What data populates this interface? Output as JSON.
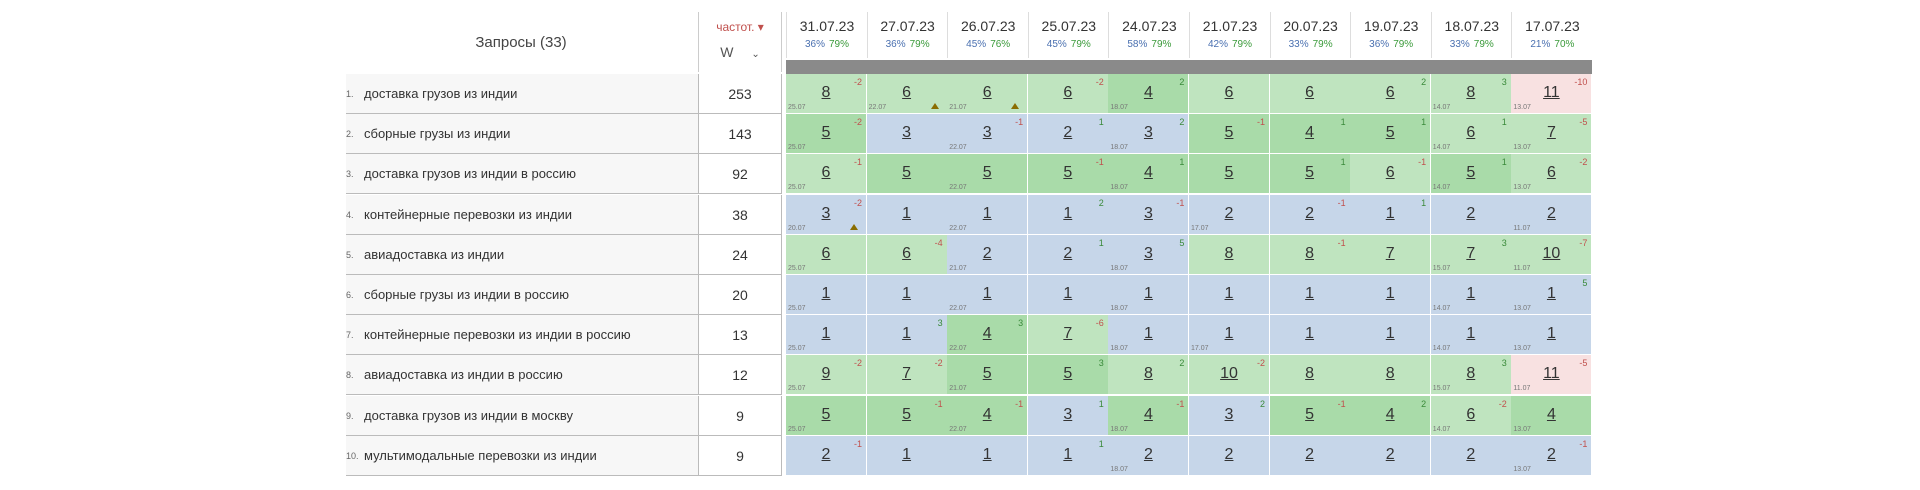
{
  "header": {
    "queries_title": "Запросы (33)",
    "freq_title": "частот. ▾",
    "freq_select": "W",
    "dates": [
      {
        "date": "31.07.23",
        "pct_a": "36%",
        "pct_b": "79%"
      },
      {
        "date": "27.07.23",
        "pct_a": "36%",
        "pct_b": "79%"
      },
      {
        "date": "26.07.23",
        "pct_a": "45%",
        "pct_b": "76%"
      },
      {
        "date": "25.07.23",
        "pct_a": "45%",
        "pct_b": "79%"
      },
      {
        "date": "24.07.23",
        "pct_a": "58%",
        "pct_b": "79%"
      },
      {
        "date": "21.07.23",
        "pct_a": "42%",
        "pct_b": "79%"
      },
      {
        "date": "20.07.23",
        "pct_a": "33%",
        "pct_b": "79%"
      },
      {
        "date": "19.07.23",
        "pct_a": "36%",
        "pct_b": "79%"
      },
      {
        "date": "18.07.23",
        "pct_a": "33%",
        "pct_b": "79%"
      },
      {
        "date": "17.07.23",
        "pct_a": "21%",
        "pct_b": "70%"
      }
    ]
  },
  "rows": [
    {
      "idx": "1.",
      "query": "доставка грузов из индии",
      "freq": "253",
      "cells": [
        {
          "pos": "8",
          "delta": "-2",
          "date": "25.07",
          "c": "g"
        },
        {
          "pos": "6",
          "delta": "",
          "date": "22.07",
          "c": "g",
          "tri": true
        },
        {
          "pos": "6",
          "delta": "",
          "date": "21.07",
          "c": "g",
          "tri": true
        },
        {
          "pos": "6",
          "delta": "-2",
          "date": "",
          "c": "g"
        },
        {
          "pos": "4",
          "delta": "2",
          "date": "18.07",
          "c": "dg"
        },
        {
          "pos": "6",
          "delta": "",
          "date": "",
          "c": "g"
        },
        {
          "pos": "6",
          "delta": "",
          "date": "",
          "c": "g"
        },
        {
          "pos": "6",
          "delta": "2",
          "date": "",
          "c": "g"
        },
        {
          "pos": "8",
          "delta": "3",
          "date": "14.07",
          "c": "g"
        },
        {
          "pos": "11",
          "delta": "-10",
          "date": "13.07",
          "c": "r"
        }
      ]
    },
    {
      "idx": "2.",
      "query": "сборные грузы из индии",
      "freq": "143",
      "cells": [
        {
          "pos": "5",
          "delta": "-2",
          "date": "25.07",
          "c": "dg"
        },
        {
          "pos": "3",
          "delta": "",
          "date": "",
          "c": "b"
        },
        {
          "pos": "3",
          "delta": "-1",
          "date": "22.07",
          "c": "b"
        },
        {
          "pos": "2",
          "delta": "1",
          "date": "",
          "c": "b"
        },
        {
          "pos": "3",
          "delta": "2",
          "date": "18.07",
          "c": "b"
        },
        {
          "pos": "5",
          "delta": "-1",
          "date": "",
          "c": "dg"
        },
        {
          "pos": "4",
          "delta": "1",
          "date": "",
          "c": "dg"
        },
        {
          "pos": "5",
          "delta": "1",
          "date": "",
          "c": "dg"
        },
        {
          "pos": "6",
          "delta": "1",
          "date": "14.07",
          "c": "g"
        },
        {
          "pos": "7",
          "delta": "-5",
          "date": "13.07",
          "c": "g"
        }
      ]
    },
    {
      "idx": "3.",
      "query": "доставка грузов из индии в россию",
      "freq": "92",
      "cells": [
        {
          "pos": "6",
          "delta": "-1",
          "date": "25.07",
          "c": "g"
        },
        {
          "pos": "5",
          "delta": "",
          "date": "",
          "c": "dg"
        },
        {
          "pos": "5",
          "delta": "",
          "date": "22.07",
          "c": "dg"
        },
        {
          "pos": "5",
          "delta": "-1",
          "date": "",
          "c": "dg"
        },
        {
          "pos": "4",
          "delta": "1",
          "date": "18.07",
          "c": "dg"
        },
        {
          "pos": "5",
          "delta": "",
          "date": "",
          "c": "dg"
        },
        {
          "pos": "5",
          "delta": "1",
          "date": "",
          "c": "dg"
        },
        {
          "pos": "6",
          "delta": "-1",
          "date": "",
          "c": "g"
        },
        {
          "pos": "5",
          "delta": "1",
          "date": "14.07",
          "c": "dg"
        },
        {
          "pos": "6",
          "delta": "-2",
          "date": "13.07",
          "c": "g"
        }
      ]
    },
    {
      "idx": "4.",
      "query": "контейнерные перевозки из индии",
      "freq": "38",
      "cells": [
        {
          "pos": "3",
          "delta": "-2",
          "date": "20.07",
          "c": "b",
          "tri": true
        },
        {
          "pos": "1",
          "delta": "",
          "date": "",
          "c": "b"
        },
        {
          "pos": "1",
          "delta": "",
          "date": "22.07",
          "c": "b"
        },
        {
          "pos": "1",
          "delta": "2",
          "date": "",
          "c": "b"
        },
        {
          "pos": "3",
          "delta": "-1",
          "date": "",
          "c": "b"
        },
        {
          "pos": "2",
          "delta": "",
          "date": "17.07",
          "c": "b"
        },
        {
          "pos": "2",
          "delta": "-1",
          "date": "",
          "c": "b"
        },
        {
          "pos": "1",
          "delta": "1",
          "date": "",
          "c": "b"
        },
        {
          "pos": "2",
          "delta": "",
          "date": "",
          "c": "b"
        },
        {
          "pos": "2",
          "delta": "",
          "date": "11.07",
          "c": "b"
        }
      ]
    },
    {
      "idx": "5.",
      "query": "авиадоставка из индии",
      "freq": "24",
      "cells": [
        {
          "pos": "6",
          "delta": "",
          "date": "25.07",
          "c": "g"
        },
        {
          "pos": "6",
          "delta": "-4",
          "date": "",
          "c": "g"
        },
        {
          "pos": "2",
          "delta": "",
          "date": "21.07",
          "c": "b"
        },
        {
          "pos": "2",
          "delta": "1",
          "date": "",
          "c": "b"
        },
        {
          "pos": "3",
          "delta": "5",
          "date": "18.07",
          "c": "b"
        },
        {
          "pos": "8",
          "delta": "",
          "date": "",
          "c": "g"
        },
        {
          "pos": "8",
          "delta": "-1",
          "date": "",
          "c": "g"
        },
        {
          "pos": "7",
          "delta": "",
          "date": "",
          "c": "g"
        },
        {
          "pos": "7",
          "delta": "3",
          "date": "15.07",
          "c": "g"
        },
        {
          "pos": "10",
          "delta": "-7",
          "date": "11.07",
          "c": "g"
        }
      ]
    },
    {
      "idx": "6.",
      "query": "сборные грузы из индии в россию",
      "freq": "20",
      "cells": [
        {
          "pos": "1",
          "delta": "",
          "date": "25.07",
          "c": "b"
        },
        {
          "pos": "1",
          "delta": "",
          "date": "",
          "c": "b"
        },
        {
          "pos": "1",
          "delta": "",
          "date": "22.07",
          "c": "b"
        },
        {
          "pos": "1",
          "delta": "",
          "date": "",
          "c": "b"
        },
        {
          "pos": "1",
          "delta": "",
          "date": "18.07",
          "c": "b"
        },
        {
          "pos": "1",
          "delta": "",
          "date": "",
          "c": "b"
        },
        {
          "pos": "1",
          "delta": "",
          "date": "",
          "c": "b"
        },
        {
          "pos": "1",
          "delta": "",
          "date": "",
          "c": "b"
        },
        {
          "pos": "1",
          "delta": "",
          "date": "14.07",
          "c": "b"
        },
        {
          "pos": "1",
          "delta": "5",
          "date": "13.07",
          "c": "b"
        }
      ]
    },
    {
      "idx": "7.",
      "query": "контейнерные перевозки из индии в россию",
      "freq": "13",
      "cells": [
        {
          "pos": "1",
          "delta": "",
          "date": "25.07",
          "c": "b"
        },
        {
          "pos": "1",
          "delta": "3",
          "date": "",
          "c": "b"
        },
        {
          "pos": "4",
          "delta": "3",
          "date": "22.07",
          "c": "dg"
        },
        {
          "pos": "7",
          "delta": "-6",
          "date": "",
          "c": "g"
        },
        {
          "pos": "1",
          "delta": "",
          "date": "18.07",
          "c": "b"
        },
        {
          "pos": "1",
          "delta": "",
          "date": "17.07",
          "c": "b"
        },
        {
          "pos": "1",
          "delta": "",
          "date": "",
          "c": "b"
        },
        {
          "pos": "1",
          "delta": "",
          "date": "",
          "c": "b"
        },
        {
          "pos": "1",
          "delta": "",
          "date": "14.07",
          "c": "b"
        },
        {
          "pos": "1",
          "delta": "",
          "date": "13.07",
          "c": "b"
        }
      ]
    },
    {
      "idx": "8.",
      "query": "авиадоставка из индии в россию",
      "freq": "12",
      "cells": [
        {
          "pos": "9",
          "delta": "-2",
          "date": "25.07",
          "c": "g"
        },
        {
          "pos": "7",
          "delta": "-2",
          "date": "",
          "c": "g"
        },
        {
          "pos": "5",
          "delta": "",
          "date": "21.07",
          "c": "dg"
        },
        {
          "pos": "5",
          "delta": "3",
          "date": "",
          "c": "dg"
        },
        {
          "pos": "8",
          "delta": "2",
          "date": "",
          "c": "g"
        },
        {
          "pos": "10",
          "delta": "-2",
          "date": "",
          "c": "g"
        },
        {
          "pos": "8",
          "delta": "",
          "date": "",
          "c": "g"
        },
        {
          "pos": "8",
          "delta": "",
          "date": "",
          "c": "g"
        },
        {
          "pos": "8",
          "delta": "3",
          "date": "15.07",
          "c": "g"
        },
        {
          "pos": "11",
          "delta": "-5",
          "date": "11.07",
          "c": "r"
        }
      ]
    },
    {
      "idx": "9.",
      "query": "доставка грузов из индии в москву",
      "freq": "9",
      "cells": [
        {
          "pos": "5",
          "delta": "",
          "date": "25.07",
          "c": "dg"
        },
        {
          "pos": "5",
          "delta": "-1",
          "date": "",
          "c": "dg"
        },
        {
          "pos": "4",
          "delta": "-1",
          "date": "22.07",
          "c": "dg"
        },
        {
          "pos": "3",
          "delta": "1",
          "date": "",
          "c": "b"
        },
        {
          "pos": "4",
          "delta": "-1",
          "date": "18.07",
          "c": "dg"
        },
        {
          "pos": "3",
          "delta": "2",
          "date": "",
          "c": "b"
        },
        {
          "pos": "5",
          "delta": "-1",
          "date": "",
          "c": "dg"
        },
        {
          "pos": "4",
          "delta": "2",
          "date": "",
          "c": "dg"
        },
        {
          "pos": "6",
          "delta": "-2",
          "date": "14.07",
          "c": "g"
        },
        {
          "pos": "4",
          "delta": "",
          "date": "13.07",
          "c": "dg"
        }
      ]
    },
    {
      "idx": "10.",
      "query": "мультимодальные перевозки из индии",
      "freq": "9",
      "cells": [
        {
          "pos": "2",
          "delta": "-1",
          "date": "",
          "c": "b"
        },
        {
          "pos": "1",
          "delta": "",
          "date": "",
          "c": "b"
        },
        {
          "pos": "1",
          "delta": "",
          "date": "",
          "c": "b"
        },
        {
          "pos": "1",
          "delta": "1",
          "date": "",
          "c": "b"
        },
        {
          "pos": "2",
          "delta": "",
          "date": "18.07",
          "c": "b"
        },
        {
          "pos": "2",
          "delta": "",
          "date": "",
          "c": "b"
        },
        {
          "pos": "2",
          "delta": "",
          "date": "",
          "c": "b"
        },
        {
          "pos": "2",
          "delta": "",
          "date": "",
          "c": "b"
        },
        {
          "pos": "2",
          "delta": "",
          "date": "",
          "c": "b"
        },
        {
          "pos": "2",
          "delta": "-1",
          "date": "13.07",
          "c": "b"
        }
      ]
    }
  ]
}
